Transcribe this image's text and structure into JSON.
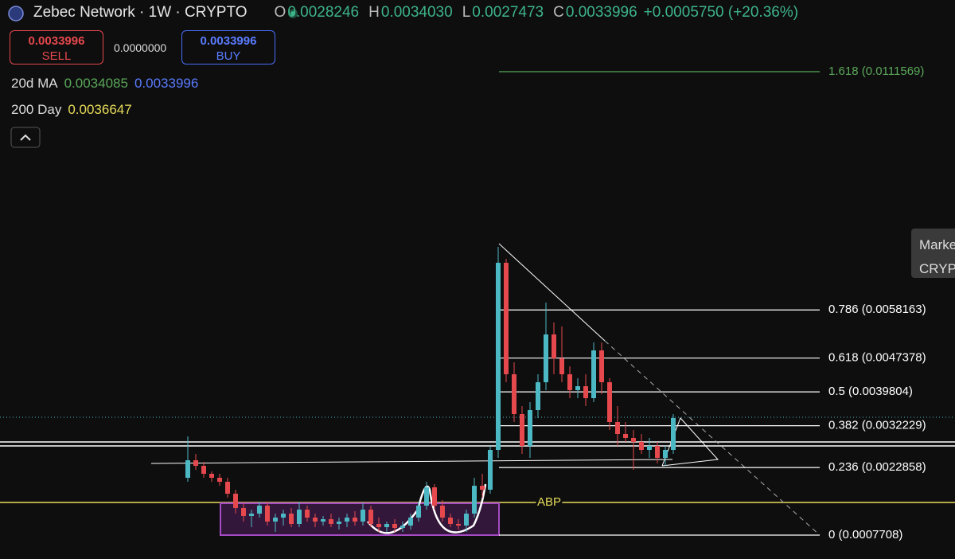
{
  "header": {
    "symbol": "Zebec Network · 1W · CRYPTO",
    "ohlc": [
      {
        "key": "O",
        "value": "0.0028246"
      },
      {
        "key": "H",
        "value": "0.0034030"
      },
      {
        "key": "L",
        "value": "0.0027473"
      },
      {
        "key": "C",
        "value": "0.0033996"
      }
    ],
    "change": "+0.0005750 (+20.36%)"
  },
  "trade": {
    "sell_price": "0.0033996",
    "sell_label": "SELL",
    "spread": "0.0000000",
    "buy_price": "0.0033996",
    "buy_label": "BUY"
  },
  "indicators": [
    {
      "name": "20d MA",
      "values": [
        "0.0034085",
        "0.0033996"
      ]
    },
    {
      "name": "200 Day",
      "values": [
        "0.0036647"
      ]
    }
  ],
  "tooltip": [
    "Marke",
    "CRYP"
  ],
  "chart_data": {
    "type": "candlestick",
    "up_color": "#4cb8c4",
    "down_color": "#e5484d",
    "candles": [
      [
        0.0020557,
        0.0029837,
        0.0019665,
        0.0024483
      ],
      [
        0.0024483,
        0.0025911,
        0.0022342,
        0.0023234
      ],
      [
        0.0023234,
        0.0024126,
        0.0020557,
        0.0021449
      ],
      [
        0.0021449,
        0.0021985,
        0.0019665,
        0.0020557
      ],
      [
        0.0020557,
        0.0021449,
        0.0018772,
        0.0019665
      ],
      [
        0.0019665,
        0.0020557,
        0.0016095,
        0.0016988
      ],
      [
        0.0016988,
        0.001788,
        0.0012526,
        0.0013775
      ],
      [
        0.0013775,
        0.0014846,
        0.0010742,
        0.0011991
      ],
      [
        0.0011991,
        0.0013419,
        0.0009492,
        0.0012526
      ],
      [
        0.0012526,
        0.0015203,
        0.0011634,
        0.0014311
      ],
      [
        0.0014311,
        0.0015203,
        0.0009849,
        0.0010742
      ],
      [
        0.0010742,
        0.0012526,
        0.0008422,
        0.0011634
      ],
      [
        0.0011634,
        0.0013419,
        0.0009849,
        0.0012526
      ],
      [
        0.0012526,
        0.0013775,
        0.0009492,
        0.0010206
      ],
      [
        0.0010206,
        0.0015203,
        0.0009492,
        0.0013419
      ],
      [
        0.0013419,
        0.0014311,
        0.0010742,
        0.0011634
      ],
      [
        0.0011634,
        0.0012526,
        0.0009492,
        0.0010742
      ],
      [
        0.0010742,
        0.0011991,
        0.0009849,
        0.0011277
      ],
      [
        0.0011277,
        0.0012526,
        0.0009492,
        0.0010206
      ],
      [
        0.0010206,
        0.0011634,
        0.0008957,
        0.0010742
      ],
      [
        0.0010742,
        0.0012526,
        0.0009492,
        0.0011634
      ],
      [
        0.0011634,
        0.0013062,
        0.0009849,
        0.0010742
      ],
      [
        0.0010742,
        0.0014846,
        0.0009849,
        0.0013419
      ],
      [
        0.0013419,
        0.0014311,
        0.0009492,
        0.0010206
      ],
      [
        0.0010206,
        0.0011634,
        0.0008422,
        0.0009492
      ],
      [
        0.0009492,
        0.0010742,
        0.0008422,
        0.0010206
      ],
      [
        0.0010206,
        0.0011277,
        0.0008422,
        0.0009314
      ],
      [
        0.0009314,
        0.0010742,
        0.0008422,
        0.0009849
      ],
      [
        0.0009849,
        0.0012526,
        0.0008957,
        0.0011634
      ],
      [
        0.0011634,
        0.0015203,
        0.0010742,
        0.0014311
      ],
      [
        0.0014311,
        0.0019665,
        0.0013419,
        0.0018415
      ],
      [
        0.0018415,
        0.0019129,
        0.0013419,
        0.0014311
      ],
      [
        0.0014311,
        0.001556,
        0.0010742,
        0.0011634
      ],
      [
        0.0011634,
        0.0012526,
        0.0009492,
        0.0010206
      ],
      [
        0.0010206,
        0.0011277,
        0.0008957,
        0.0009849
      ],
      [
        0.0009849,
        0.0013419,
        0.0008422,
        0.0012526
      ],
      [
        0.0012526,
        0.0020557,
        0.0011634,
        0.0018772
      ],
      [
        0.0018772,
        0.0021449,
        0.0016095,
        0.001788
      ],
      [
        0.001788,
        0.0027695,
        0.0016988,
        0.0026803
      ],
      [
        0.0026803,
        0.007231,
        0.0025018,
        0.0068741
      ],
      [
        0.0068741,
        0.0069633,
        0.0041972,
        0.0043757
      ],
      [
        0.0043757,
        0.0046434,
        0.0033049,
        0.0034834
      ],
      [
        0.0034834,
        0.0036618,
        0.0025911,
        0.0027695
      ],
      [
        0.0027695,
        0.0037511,
        0.0025018,
        0.0035726
      ],
      [
        0.0035726,
        0.0043757,
        0.0033941,
        0.0041972
      ],
      [
        0.0041972,
        0.0059818,
        0.0040188,
        0.005268
      ],
      [
        0.005268,
        0.0055357,
        0.0043757,
        0.0047326
      ],
      [
        0.0047326,
        0.0054464,
        0.0041972,
        0.0043757
      ],
      [
        0.0043757,
        0.0045541,
        0.0038403,
        0.0040188
      ],
      [
        0.0040188,
        0.0042864,
        0.0038403,
        0.004108
      ],
      [
        0.004108,
        0.0043757,
        0.0036618,
        0.0038403
      ],
      [
        0.0038403,
        0.0050895,
        0.0037511,
        0.0049111
      ],
      [
        0.0049111,
        0.0050895,
        0.0039295,
        0.0041972
      ],
      [
        0.0041972,
        0.0042864,
        0.0031265,
        0.0033049
      ],
      [
        0.0033049,
        0.0036618,
        0.0027695,
        0.0030372
      ],
      [
        0.0030372,
        0.0033049,
        0.0028588,
        0.002948
      ],
      [
        0.002948,
        0.0031265,
        0.0022342,
        0.0028588
      ],
      [
        0.0028588,
        0.0030372,
        0.0025911,
        0.0026803
      ],
      [
        0.0026803,
        0.002948,
        0.0025018,
        0.0027695
      ],
      [
        0.0027695,
        0.0028588,
        0.0023769,
        0.0025018
      ],
      [
        0.0025018,
        0.0027695,
        0.0023234,
        0.0026803
      ],
      [
        0.0026803,
        0.0034834,
        0.0025911,
        0.0033941
      ]
    ],
    "fib_levels": [
      {
        "label": "1.618 (0.0111569)",
        "value": 0.0111569,
        "color": "#5aa85a"
      },
      {
        "label": "0.786 (0.0058163)",
        "value": 0.0058163,
        "color": "#ffffff"
      },
      {
        "label": "0.618 (0.0047378)",
        "value": 0.0047378,
        "color": "#ffffff"
      },
      {
        "label": "0.5 (0.0039804)",
        "value": 0.0039804,
        "color": "#ffffff"
      },
      {
        "label": "0.382 (0.0032229)",
        "value": 0.0032229,
        "color": "#ffffff"
      },
      {
        "label": "0.236 (0.0022858)",
        "value": 0.0022858,
        "color": "#ffffff"
      },
      {
        "label": "0 (0.0007708)",
        "value": 0.0007708,
        "color": "#ffffff"
      }
    ],
    "annotation": "ABP"
  }
}
